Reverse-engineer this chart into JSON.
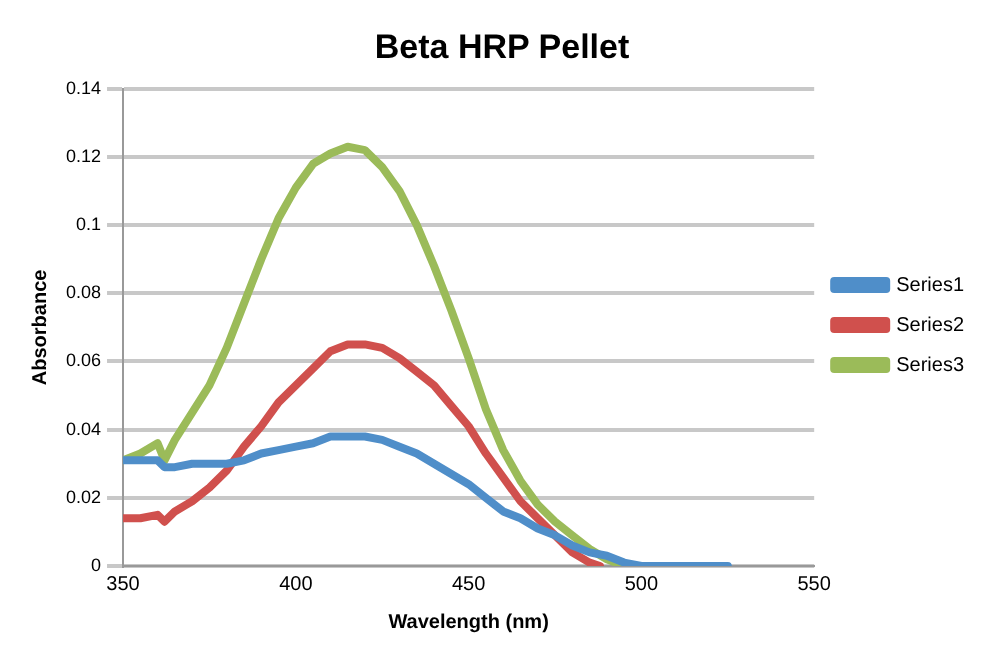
{
  "chart_data": {
    "type": "line",
    "title": "Beta HRP Pellet",
    "xlabel": "Wavelength (nm)",
    "ylabel": "Absorbance",
    "xlim": [
      350,
      550
    ],
    "xticks": [
      350,
      400,
      450,
      500,
      550
    ],
    "ylim": [
      0,
      0.14
    ],
    "yticks": [
      0,
      0.02,
      0.04,
      0.06,
      0.08,
      0.1,
      0.12,
      0.14
    ],
    "grid": "y",
    "legend": "right",
    "marker": "none",
    "series": [
      {
        "name": "Series1",
        "color": "#4f8ec9",
        "x": [
          350,
          355,
          360,
          362,
          365,
          370,
          375,
          380,
          385,
          390,
          395,
          400,
          405,
          410,
          415,
          420,
          425,
          430,
          435,
          440,
          445,
          450,
          455,
          460,
          465,
          470,
          475,
          480,
          485,
          490,
          495,
          500,
          525
        ],
        "values": [
          0.031,
          0.031,
          0.031,
          0.029,
          0.029,
          0.03,
          0.03,
          0.03,
          0.031,
          0.033,
          0.034,
          0.035,
          0.036,
          0.038,
          0.038,
          0.038,
          0.037,
          0.035,
          0.033,
          0.03,
          0.027,
          0.024,
          0.02,
          0.016,
          0.014,
          0.011,
          0.009,
          0.006,
          0.004,
          0.003,
          0.001,
          0,
          0
        ]
      },
      {
        "name": "Series2",
        "color": "#d0504d",
        "x": [
          350,
          355,
          360,
          362,
          365,
          370,
          375,
          380,
          385,
          390,
          395,
          400,
          405,
          410,
          415,
          420,
          425,
          430,
          435,
          440,
          445,
          450,
          455,
          460,
          465,
          470,
          475,
          480,
          485,
          488
        ],
        "values": [
          0.014,
          0.014,
          0.015,
          0.013,
          0.016,
          0.019,
          0.023,
          0.028,
          0.035,
          0.041,
          0.048,
          0.053,
          0.058,
          0.063,
          0.065,
          0.065,
          0.064,
          0.061,
          0.057,
          0.053,
          0.047,
          0.041,
          0.033,
          0.026,
          0.019,
          0.014,
          0.009,
          0.004,
          0.001,
          0
        ]
      },
      {
        "name": "Series3",
        "color": "#9bbb59",
        "x": [
          350,
          355,
          360,
          362,
          365,
          370,
          375,
          380,
          385,
          390,
          395,
          400,
          405,
          410,
          415,
          420,
          425,
          430,
          435,
          440,
          445,
          450,
          455,
          460,
          465,
          470,
          475,
          480,
          485,
          490,
          495
        ],
        "values": [
          0.031,
          0.033,
          0.036,
          0.031,
          0.037,
          0.045,
          0.053,
          0.064,
          0.077,
          0.09,
          0.102,
          0.111,
          0.118,
          0.121,
          0.123,
          0.122,
          0.117,
          0.11,
          0.1,
          0.088,
          0.075,
          0.061,
          0.046,
          0.034,
          0.025,
          0.018,
          0.013,
          0.009,
          0.005,
          0.002,
          0
        ]
      }
    ]
  }
}
